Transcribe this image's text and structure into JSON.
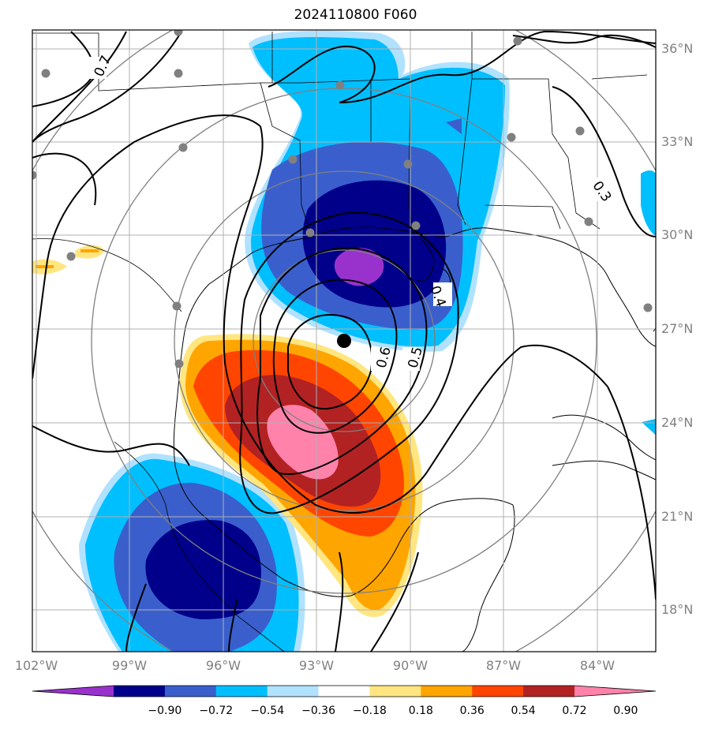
{
  "title": "2024110800 F060",
  "map": {
    "extent": {
      "lon": [
        -102.1,
        -82.1
      ],
      "lat": [
        16.8,
        36.6
      ]
    },
    "lat_labels": [
      "36°N",
      "33°N",
      "30°N",
      "27°N",
      "24°N",
      "21°N",
      "18°N"
    ],
    "lon_labels": [
      "102°W",
      "99°W",
      "96°W",
      "93°W",
      "90°W",
      "87°W",
      "84°W"
    ],
    "contour_labels": [
      "0.7",
      "0.3",
      "0.6",
      "0.5",
      "0.4"
    ],
    "center_marker": {
      "lon": -92.4,
      "lat": 26.6,
      "color": "#000000"
    },
    "station_color": "#808080",
    "range_ring_color": "#808080",
    "gridline_color": "#b0b0b0"
  },
  "colorbar": {
    "ticks": [
      "−0.90",
      "−0.72",
      "−0.54",
      "−0.36",
      "−0.18",
      "0.18",
      "0.36",
      "0.54",
      "0.72",
      "0.90"
    ],
    "colors": [
      "#9932cc",
      "#00008b",
      "#3a5fcd",
      "#00bfff",
      "#b0e2ff",
      "#ffffff",
      "#ffe680",
      "#ffa500",
      "#ff4500",
      "#b22222",
      "#ff82ab"
    ],
    "extend": "both"
  }
}
